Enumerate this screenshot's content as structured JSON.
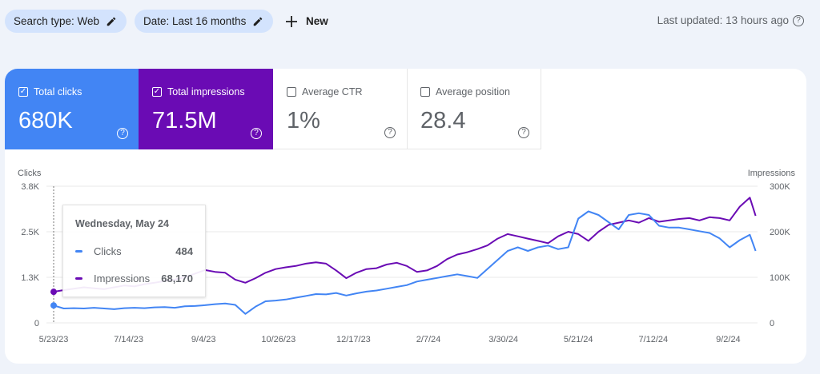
{
  "filters": {
    "search_type": "Search type: Web",
    "date": "Date: Last 16 months",
    "new_label": "New"
  },
  "last_updated": "Last updated: 13 hours ago",
  "metrics": [
    {
      "label": "Total clicks",
      "value": "680K",
      "checked": true,
      "color": "#4285f4"
    },
    {
      "label": "Total impressions",
      "value": "71.5M",
      "checked": true,
      "color": "#6a0bb4"
    },
    {
      "label": "Average CTR",
      "value": "1%",
      "checked": false
    },
    {
      "label": "Average position",
      "value": "28.4",
      "checked": false
    }
  ],
  "tooltip": {
    "date": "Wednesday, May 24",
    "clicks_label": "Clicks",
    "clicks_value": "484",
    "impressions_label": "Impressions",
    "impressions_value": "68,170"
  },
  "chart_data": {
    "type": "line",
    "ylabel_left": "Clicks",
    "ylabel_right": "Impressions",
    "yticks_left": [
      "0",
      "1.3K",
      "2.5K",
      "3.8K"
    ],
    "yticks_right": [
      "0",
      "100K",
      "200K",
      "300K"
    ],
    "ylim_left": [
      0,
      3800
    ],
    "ylim_right": [
      0,
      300000
    ],
    "xtick_labels": [
      "5/23/23",
      "7/14/23",
      "9/4/23",
      "10/26/23",
      "12/17/23",
      "2/7/24",
      "3/30/24",
      "5/21/24",
      "7/12/24",
      "9/2/24"
    ],
    "xtick_dates": [
      "2023-05-23",
      "2023-07-14",
      "2023-09-04",
      "2023-10-26",
      "2023-12-17",
      "2024-02-07",
      "2024-03-30",
      "2024-05-21",
      "2024-07-12",
      "2024-09-02"
    ],
    "grid": true,
    "x": [
      "2023-05-23",
      "2023-05-30",
      "2023-06-06",
      "2023-06-13",
      "2023-06-20",
      "2023-06-27",
      "2023-07-04",
      "2023-07-11",
      "2023-07-18",
      "2023-07-25",
      "2023-08-01",
      "2023-08-08",
      "2023-08-15",
      "2023-08-22",
      "2023-08-29",
      "2023-09-05",
      "2023-09-12",
      "2023-09-19",
      "2023-09-26",
      "2023-10-03",
      "2023-10-10",
      "2023-10-17",
      "2023-10-24",
      "2023-10-31",
      "2023-11-07",
      "2023-11-14",
      "2023-11-21",
      "2023-11-28",
      "2023-12-05",
      "2023-12-12",
      "2023-12-19",
      "2023-12-26",
      "2024-01-02",
      "2024-01-09",
      "2024-01-16",
      "2024-01-23",
      "2024-01-30",
      "2024-02-06",
      "2024-02-13",
      "2024-02-20",
      "2024-02-27",
      "2024-03-05",
      "2024-03-12",
      "2024-03-19",
      "2024-03-26",
      "2024-04-02",
      "2024-04-09",
      "2024-04-16",
      "2024-04-23",
      "2024-04-30",
      "2024-05-07",
      "2024-05-14",
      "2024-05-21",
      "2024-05-28",
      "2024-06-04",
      "2024-06-11",
      "2024-06-18",
      "2024-06-25",
      "2024-07-02",
      "2024-07-09",
      "2024-07-16",
      "2024-07-23",
      "2024-07-30",
      "2024-08-06",
      "2024-08-13",
      "2024-08-20",
      "2024-08-27",
      "2024-09-03",
      "2024-09-10",
      "2024-09-17",
      "2024-09-21"
    ],
    "series": [
      {
        "name": "Clicks",
        "axis": "left",
        "color": "#4285f4",
        "values": [
          484,
          400,
          410,
          400,
          420,
          400,
          380,
          410,
          420,
          410,
          430,
          440,
          420,
          460,
          470,
          490,
          520,
          540,
          500,
          250,
          450,
          600,
          620,
          650,
          700,
          750,
          800,
          790,
          830,
          760,
          820,
          870,
          900,
          950,
          1000,
          1050,
          1150,
          1200,
          1250,
          1300,
          1350,
          1300,
          1250,
          1500,
          1750,
          2000,
          2100,
          2000,
          2100,
          2150,
          2050,
          2100,
          2900,
          3100,
          3000,
          2800,
          2600,
          3000,
          3050,
          3000,
          2700,
          2650,
          2650,
          2600,
          2550,
          2500,
          2350,
          2100,
          2300,
          2450,
          2000
        ]
      },
      {
        "name": "Impressions",
        "axis": "right",
        "color": "#6a0bb4",
        "values": [
          68170,
          72000,
          75000,
          78000,
          76000,
          74000,
          78000,
          82000,
          80000,
          85000,
          88000,
          92000,
          95000,
          100000,
          108000,
          116000,
          112000,
          110000,
          95000,
          88000,
          98000,
          110000,
          118000,
          122000,
          125000,
          130000,
          133000,
          130000,
          115000,
          98000,
          110000,
          118000,
          120000,
          128000,
          132000,
          125000,
          112000,
          115000,
          125000,
          140000,
          150000,
          155000,
          162000,
          170000,
          185000,
          195000,
          190000,
          185000,
          180000,
          175000,
          190000,
          200000,
          195000,
          180000,
          200000,
          215000,
          220000,
          225000,
          220000,
          230000,
          222000,
          225000,
          228000,
          230000,
          225000,
          232000,
          230000,
          225000,
          255000,
          275000,
          235000
        ]
      }
    ]
  }
}
